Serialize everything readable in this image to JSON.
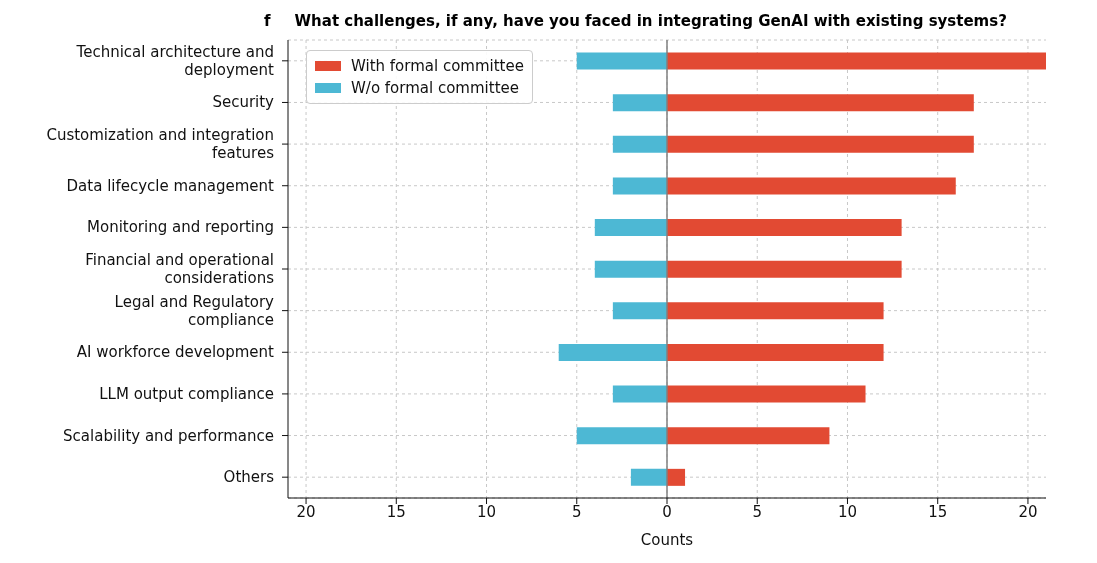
{
  "chart_data": {
    "type": "bar",
    "orientation": "horizontal",
    "stacked": true,
    "title": "What challenges, if any, have you faced in integrating GenAI with existing systems?",
    "annotations": [
      "f"
    ],
    "xlabel": "Counts",
    "categories": [
      "Technical architecture and\ndeployment",
      "Security",
      "Customization and integration\nfeatures",
      "Data lifecycle management",
      "Monitoring and reporting",
      "Financial and operational\nconsiderations",
      "Legal and Regulatory\ncompliance",
      "AI workforce development",
      "LLM output compliance",
      "Scalability and performance",
      "Others"
    ],
    "series": [
      {
        "name": "With formal committee",
        "color": "#e24a33",
        "values": [
          21,
          17,
          17,
          16,
          13,
          13,
          12,
          12,
          11,
          9,
          1
        ]
      },
      {
        "name": "W/o formal committee",
        "color": "#4db8d4",
        "values": [
          -5,
          -3,
          -3,
          -3,
          -4,
          -4,
          -3,
          -6,
          -3,
          -5,
          -2
        ]
      }
    ],
    "xlim": [
      -21,
      21
    ],
    "xticks": [
      {
        "value": -20,
        "label": "20"
      },
      {
        "value": -15,
        "label": "15"
      },
      {
        "value": -10,
        "label": "10"
      },
      {
        "value": -5,
        "label": "5"
      },
      0,
      5,
      10,
      15,
      20
    ],
    "ref_lines": [
      {
        "axis": "x",
        "value": 0,
        "color": "#808080"
      }
    ],
    "grid": true,
    "legend": "top left"
  }
}
